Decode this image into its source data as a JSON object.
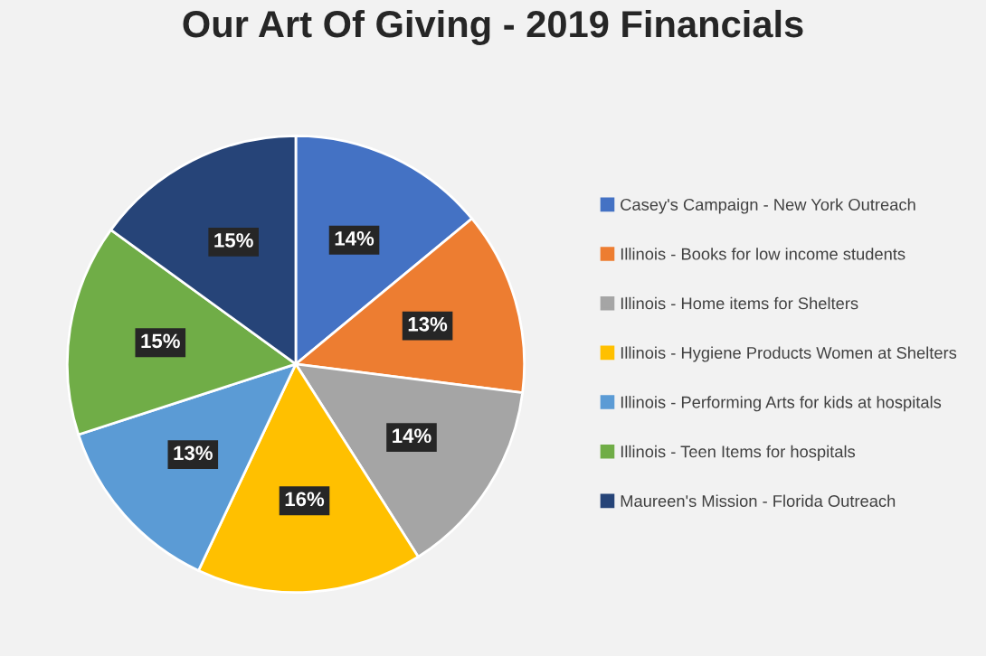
{
  "chart_data": {
    "type": "pie",
    "title": "Our Art Of Giving - 2019 Financials",
    "categories": [
      "Casey's Campaign - New York Outreach",
      "Illinois - Books for low income students",
      "Illinois - Home items for Shelters",
      "Illinois - Hygiene Products Women at Shelters",
      "Illinois - Performing Arts for kids at hospitals",
      "Illinois - Teen Items for hospitals",
      "Maureen's Mission - Florida Outreach"
    ],
    "values": [
      14,
      13,
      14,
      16,
      13,
      15,
      15
    ],
    "value_labels": [
      "14%",
      "13%",
      "14%",
      "16%",
      "13%",
      "15%",
      "15%"
    ],
    "colors": [
      "#4472c4",
      "#ed7d31",
      "#a5a5a5",
      "#ffc000",
      "#5b9bd5",
      "#70ad47",
      "#264478"
    ],
    "legend": "right"
  }
}
